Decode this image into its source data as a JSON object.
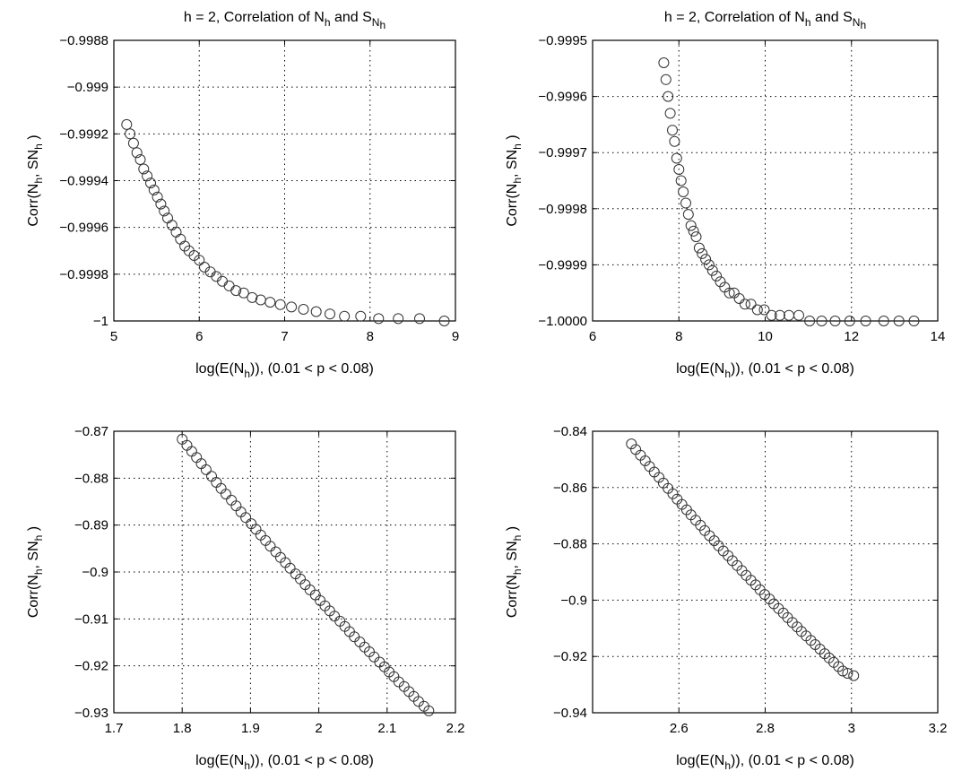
{
  "chart_data": [
    {
      "type": "scatter",
      "title": {
        "pre": "h = 2, Correlation of N",
        "sub1": "h",
        "mid": " and S",
        "sub2": "N",
        "sub3": "h"
      },
      "xlabel": {
        "pre": "log(E(N",
        "sub": "h",
        "post": ")), (0.01 < p < 0.08)"
      },
      "ylabel": {
        "pre": "Corr(N",
        "sub1": "h",
        "mid": ", SN",
        "sub2": "h",
        "post": " )"
      },
      "xlim": [
        5,
        9
      ],
      "ylim": [
        -1,
        -0.9988
      ],
      "xticks": [
        "5",
        "6",
        "7",
        "8",
        "9"
      ],
      "yticks": [
        "−0.9988",
        "−0.999",
        "−0.9992",
        "−0.9994",
        "−0.9996",
        "−0.9998",
        "−1"
      ],
      "grid": true,
      "points": [
        [
          5.15,
          -0.99916
        ],
        [
          5.19,
          -0.9992
        ],
        [
          5.23,
          -0.99924
        ],
        [
          5.27,
          -0.99928
        ],
        [
          5.31,
          -0.99931
        ],
        [
          5.35,
          -0.99935
        ],
        [
          5.39,
          -0.99938
        ],
        [
          5.43,
          -0.99941
        ],
        [
          5.47,
          -0.99944
        ],
        [
          5.51,
          -0.99947
        ],
        [
          5.55,
          -0.9995
        ],
        [
          5.59,
          -0.99953
        ],
        [
          5.63,
          -0.99956
        ],
        [
          5.68,
          -0.99959
        ],
        [
          5.73,
          -0.99962
        ],
        [
          5.78,
          -0.99965
        ],
        [
          5.83,
          -0.99968
        ],
        [
          5.88,
          -0.9997
        ],
        [
          5.94,
          -0.99972
        ],
        [
          6.0,
          -0.99974
        ],
        [
          6.06,
          -0.99977
        ],
        [
          6.13,
          -0.99979
        ],
        [
          6.2,
          -0.99981
        ],
        [
          6.27,
          -0.99983
        ],
        [
          6.35,
          -0.99985
        ],
        [
          6.43,
          -0.99987
        ],
        [
          6.52,
          -0.99988
        ],
        [
          6.62,
          -0.9999
        ],
        [
          6.72,
          -0.99991
        ],
        [
          6.83,
          -0.99992
        ],
        [
          6.95,
          -0.99993
        ],
        [
          7.08,
          -0.99994
        ],
        [
          7.22,
          -0.99995
        ],
        [
          7.37,
          -0.99996
        ],
        [
          7.53,
          -0.99997
        ],
        [
          7.7,
          -0.99998
        ],
        [
          7.89,
          -0.99998
        ],
        [
          8.1,
          -0.99999
        ],
        [
          8.33,
          -0.99999
        ],
        [
          8.58,
          -0.99999
        ],
        [
          8.87,
          -1.0
        ]
      ]
    },
    {
      "type": "scatter",
      "title": {
        "pre": "h = 2, Correlation of N",
        "sub1": "h",
        "mid": " and S",
        "sub2": "N",
        "sub3": "h"
      },
      "xlabel": {
        "pre": "log(E(N",
        "sub": "h",
        "post": ")), (0.01 < p < 0.08)"
      },
      "ylabel": {
        "pre": "Corr(N",
        "sub1": "h",
        "mid": ", SN",
        "sub2": "h",
        "post": " )"
      },
      "xlim": [
        6,
        14
      ],
      "ylim": [
        -1,
        -0.9995
      ],
      "xticks": [
        "6",
        "8",
        "10",
        "12",
        "14"
      ],
      "yticks": [
        "−0.9995",
        "−0.9996",
        "−0.9997",
        "−0.9998",
        "−0.9999",
        "−1.0000"
      ],
      "grid": true,
      "points": [
        [
          7.65,
          -0.99954
        ],
        [
          7.7,
          -0.99957
        ],
        [
          7.75,
          -0.9996
        ],
        [
          7.8,
          -0.99963
        ],
        [
          7.85,
          -0.99966
        ],
        [
          7.9,
          -0.99968
        ],
        [
          7.95,
          -0.99971
        ],
        [
          8.0,
          -0.99973
        ],
        [
          8.05,
          -0.99975
        ],
        [
          8.1,
          -0.99977
        ],
        [
          8.16,
          -0.99979
        ],
        [
          8.22,
          -0.99981
        ],
        [
          8.28,
          -0.99983
        ],
        [
          8.34,
          -0.99984
        ],
        [
          8.4,
          -0.99985
        ],
        [
          8.47,
          -0.99987
        ],
        [
          8.54,
          -0.99988
        ],
        [
          8.62,
          -0.99989
        ],
        [
          8.7,
          -0.9999
        ],
        [
          8.78,
          -0.99991
        ],
        [
          8.87,
          -0.99992
        ],
        [
          8.96,
          -0.99993
        ],
        [
          9.06,
          -0.99994
        ],
        [
          9.17,
          -0.99995
        ],
        [
          9.28,
          -0.99995
        ],
        [
          9.4,
          -0.99996
        ],
        [
          9.53,
          -0.99997
        ],
        [
          9.67,
          -0.99997
        ],
        [
          9.82,
          -0.99998
        ],
        [
          9.98,
          -0.99998
        ],
        [
          10.15,
          -0.99999
        ],
        [
          10.34,
          -0.99999
        ],
        [
          10.55,
          -0.99999
        ],
        [
          10.78,
          -0.99999
        ],
        [
          11.03,
          -1.0
        ],
        [
          11.31,
          -1.0
        ],
        [
          11.62,
          -1.0
        ],
        [
          11.96,
          -1.0
        ],
        [
          12.33,
          -1.0
        ],
        [
          12.75,
          -1.0
        ],
        [
          13.1,
          -1.0
        ],
        [
          13.45,
          -1.0
        ]
      ]
    },
    {
      "type": "scatter",
      "xlabel": {
        "pre": "log(E(N",
        "sub": "h",
        "post": ")), (0.01 < p < 0.08)"
      },
      "ylabel": {
        "pre": "Corr(N",
        "sub1": "h",
        "mid": ", SN",
        "sub2": "h",
        "post": " )"
      },
      "xlim": [
        1.7,
        2.2
      ],
      "ylim": [
        -0.93,
        -0.87
      ],
      "xticks": [
        "1.7",
        "1.8",
        "1.9",
        "2",
        "2.1",
        "2.2"
      ],
      "yticks": [
        "−0.87",
        "−0.88",
        "−0.89",
        "−0.9",
        "−0.91",
        "−0.92",
        "−0.93"
      ],
      "grid": true,
      "points": [
        [
          1.8,
          -0.8717
        ],
        [
          1.807,
          -0.873
        ],
        [
          1.814,
          -0.8743
        ],
        [
          1.821,
          -0.8756
        ],
        [
          1.828,
          -0.8769
        ],
        [
          1.835,
          -0.8782
        ],
        [
          1.843,
          -0.8796
        ],
        [
          1.85,
          -0.8809
        ],
        [
          1.857,
          -0.8822
        ],
        [
          1.864,
          -0.8834
        ],
        [
          1.872,
          -0.8847
        ],
        [
          1.879,
          -0.8859
        ],
        [
          1.886,
          -0.8872
        ],
        [
          1.893,
          -0.8884
        ],
        [
          1.901,
          -0.8897
        ],
        [
          1.908,
          -0.8909
        ],
        [
          1.915,
          -0.8921
        ],
        [
          1.922,
          -0.8933
        ],
        [
          1.929,
          -0.8945
        ],
        [
          1.937,
          -0.8957
        ],
        [
          1.944,
          -0.8969
        ],
        [
          1.951,
          -0.898
        ],
        [
          1.958,
          -0.8992
        ],
        [
          1.966,
          -0.9004
        ],
        [
          1.973,
          -0.9015
        ],
        [
          1.98,
          -0.9027
        ],
        [
          1.987,
          -0.9038
        ],
        [
          1.995,
          -0.9049
        ],
        [
          2.002,
          -0.9061
        ],
        [
          2.009,
          -0.9072
        ],
        [
          2.016,
          -0.9083
        ],
        [
          2.023,
          -0.9094
        ],
        [
          2.031,
          -0.9105
        ],
        [
          2.038,
          -0.9116
        ],
        [
          2.045,
          -0.9127
        ],
        [
          2.052,
          -0.9138
        ],
        [
          2.06,
          -0.9149
        ],
        [
          2.067,
          -0.916
        ],
        [
          2.074,
          -0.917
        ],
        [
          2.081,
          -0.9181
        ],
        [
          2.089,
          -0.9192
        ],
        [
          2.096,
          -0.9202
        ],
        [
          2.103,
          -0.9213
        ],
        [
          2.11,
          -0.9223
        ],
        [
          2.117,
          -0.9234
        ],
        [
          2.125,
          -0.9244
        ],
        [
          2.132,
          -0.9255
        ],
        [
          2.139,
          -0.9265
        ],
        [
          2.146,
          -0.9276
        ],
        [
          2.154,
          -0.9286
        ],
        [
          2.161,
          -0.9296
        ]
      ]
    },
    {
      "type": "scatter",
      "xlabel": {
        "pre": "log(E(N",
        "sub": "h",
        "post": ")), (0.01 < p < 0.08)"
      },
      "ylabel": {
        "pre": "Corr(N",
        "sub1": "h",
        "mid": ", SN",
        "sub2": "h",
        "post": " )"
      },
      "xlim": [
        2.4,
        3.2
      ],
      "ylim": [
        -0.94,
        -0.84
      ],
      "xticks": [
        "2.6",
        "2.8",
        "3",
        "3.2"
      ],
      "yticks": [
        "−0.84",
        "−0.86",
        "−0.88",
        "−0.9",
        "−0.92",
        "−0.94"
      ],
      "grid": true,
      "points": [
        [
          2.49,
          -0.8445
        ],
        [
          2.5,
          -0.8465
        ],
        [
          2.511,
          -0.8485
        ],
        [
          2.522,
          -0.8505
        ],
        [
          2.532,
          -0.8525
        ],
        [
          2.543,
          -0.8545
        ],
        [
          2.554,
          -0.8564
        ],
        [
          2.564,
          -0.8584
        ],
        [
          2.575,
          -0.8603
        ],
        [
          2.586,
          -0.8622
        ],
        [
          2.596,
          -0.8641
        ],
        [
          2.607,
          -0.866
        ],
        [
          2.618,
          -0.8679
        ],
        [
          2.628,
          -0.8697
        ],
        [
          2.639,
          -0.8716
        ],
        [
          2.65,
          -0.8734
        ],
        [
          2.66,
          -0.8753
        ],
        [
          2.671,
          -0.8771
        ],
        [
          2.682,
          -0.8789
        ],
        [
          2.692,
          -0.8807
        ],
        [
          2.703,
          -0.8825
        ],
        [
          2.714,
          -0.8842
        ],
        [
          2.724,
          -0.886
        ],
        [
          2.735,
          -0.8877
        ],
        [
          2.746,
          -0.8895
        ],
        [
          2.756,
          -0.8912
        ],
        [
          2.767,
          -0.8929
        ],
        [
          2.778,
          -0.8946
        ],
        [
          2.788,
          -0.8963
        ],
        [
          2.799,
          -0.898
        ],
        [
          2.81,
          -0.8996
        ],
        [
          2.82,
          -0.9013
        ],
        [
          2.831,
          -0.903
        ],
        [
          2.842,
          -0.9046
        ],
        [
          2.852,
          -0.9062
        ],
        [
          2.863,
          -0.9079
        ],
        [
          2.874,
          -0.9095
        ],
        [
          2.884,
          -0.9111
        ],
        [
          2.895,
          -0.9127
        ],
        [
          2.906,
          -0.9143
        ],
        [
          2.916,
          -0.9158
        ],
        [
          2.927,
          -0.9174
        ],
        [
          2.938,
          -0.919
        ],
        [
          2.948,
          -0.9205
        ],
        [
          2.959,
          -0.9221
        ],
        [
          2.97,
          -0.9236
        ],
        [
          2.98,
          -0.9252
        ],
        [
          2.991,
          -0.926
        ],
        [
          3.005,
          -0.9268
        ]
      ]
    }
  ]
}
